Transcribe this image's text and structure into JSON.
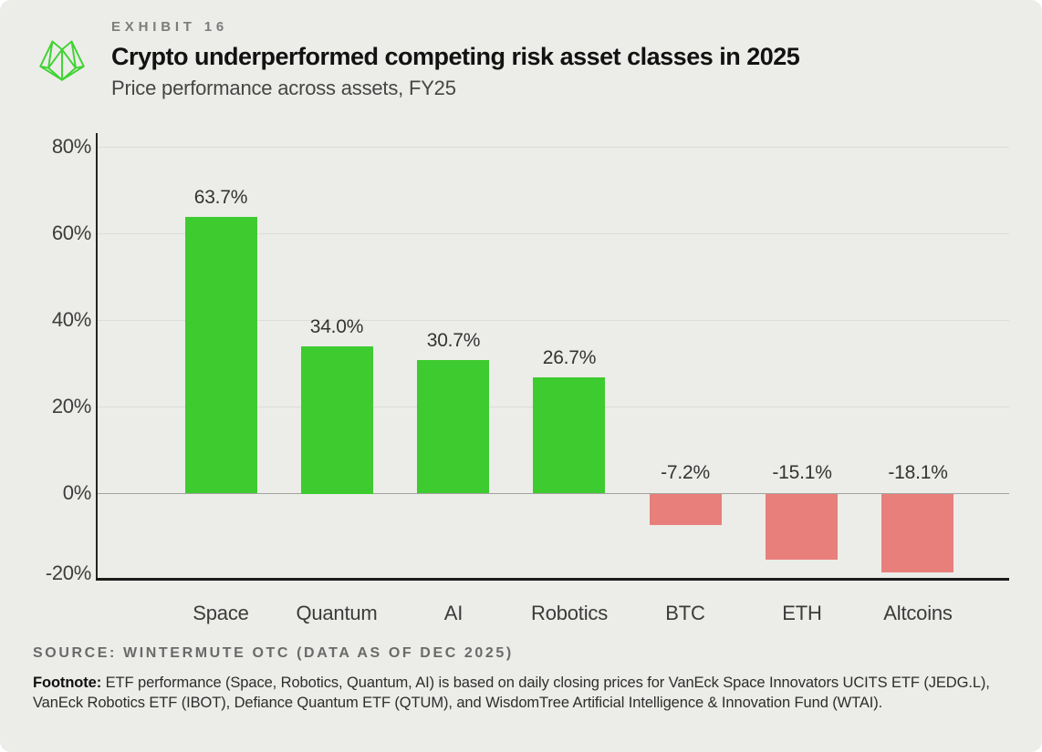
{
  "header": {
    "exhibit_label": "EXHIBIT 16",
    "title": "Crypto underperformed competing risk asset classes in 2025",
    "subtitle": "Price performance across assets, FY25"
  },
  "logo": {
    "name": "wintermute-logo",
    "color": "#3fd331"
  },
  "chart_data": {
    "type": "bar",
    "title": "Crypto underperformed competing risk asset classes in 2025",
    "subtitle": "Price performance across assets, FY25",
    "categories": [
      "Space",
      "Quantum",
      "AI",
      "Robotics",
      "BTC",
      "ETH",
      "Altcoins"
    ],
    "values": [
      63.7,
      34.0,
      30.7,
      26.7,
      -7.2,
      -15.1,
      -18.1
    ],
    "value_labels": [
      "63.7%",
      "34.0%",
      "30.7%",
      "26.7%",
      "-7.2%",
      "-15.1%",
      "-18.1%"
    ],
    "xlabel": "",
    "ylabel": "",
    "ylim": [
      -20,
      80
    ],
    "yticks": [
      80,
      60,
      40,
      20,
      0,
      -20
    ],
    "ytick_labels": [
      "80%",
      "60%",
      "40%",
      "20%",
      "0%",
      "-20%"
    ],
    "grid": true,
    "legend": false,
    "positive_color": "#3ecb30",
    "negative_color": "#e87f7a",
    "background_color": "#ecede9"
  },
  "source": "SOURCE: WINTERMUTE OTC (DATA AS OF DEC 2025)",
  "footnote": {
    "label": "Footnote:",
    "text": "ETF performance (Space, Robotics, Quantum, AI) is based on daily closing prices for VanEck Space Innovators UCITS ETF (JEDG.L), VanEck Robotics ETF (IBOT), Defiance Quantum ETF (QTUM), and WisdomTree Artificial Intelligence & Innovation Fund (WTAI)."
  }
}
